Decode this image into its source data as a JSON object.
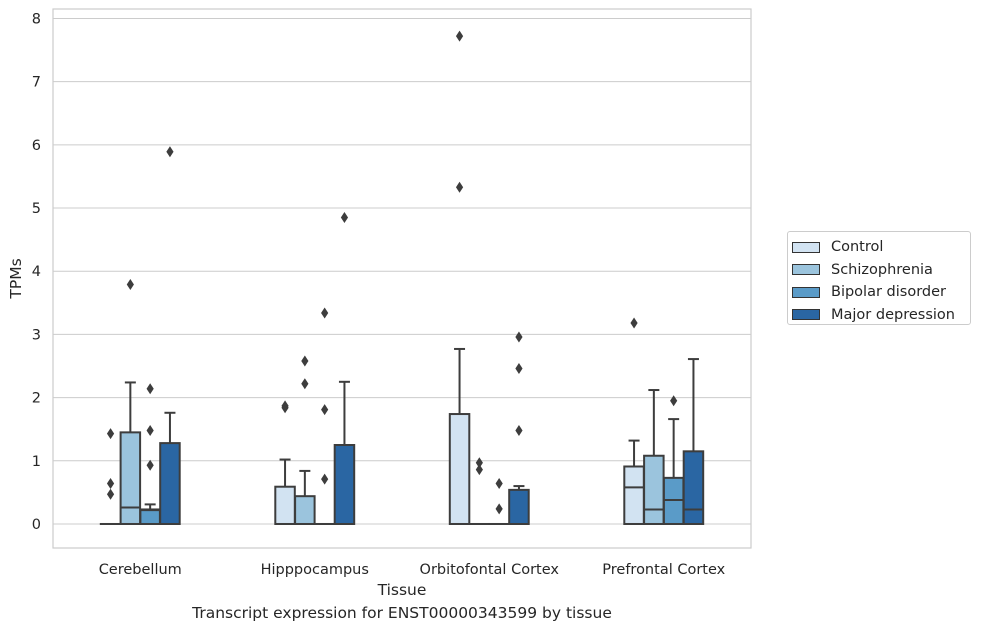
{
  "chart_data": {
    "type": "box",
    "title": "Transcript expression for ENST00000343599 by tissue",
    "xlabel": "Tissue",
    "ylabel": "TPMs",
    "ylim": [
      -0.38,
      8.15
    ],
    "yticks": [
      "0",
      "1",
      "2",
      "3",
      "4",
      "5",
      "6",
      "7",
      "8"
    ],
    "categories": [
      "Cerebellum",
      "Hipppocampus",
      "Orbitofontal Cortex",
      "Prefrontal Cortex"
    ],
    "grid": true,
    "legend_position": "right",
    "series": [
      {
        "name": "Control",
        "color": "#d2e3f2",
        "boxes": [
          {
            "q1": 0,
            "median": 0,
            "q3": 0,
            "whisker_low": 0,
            "whisker_high": 0,
            "outliers": [
              0.47,
              0.64,
              1.43
            ]
          },
          {
            "q1": 0,
            "median": 0,
            "q3": 0.59,
            "whisker_low": 0,
            "whisker_high": 1.02,
            "outliers": [
              1.84,
              1.87
            ]
          },
          {
            "q1": 0,
            "median": 0,
            "q3": 1.74,
            "whisker_low": 0,
            "whisker_high": 2.77,
            "outliers": [
              5.33,
              7.72
            ]
          },
          {
            "q1": 0,
            "median": 0.58,
            "q3": 0.91,
            "whisker_low": 0,
            "whisker_high": 1.32,
            "outliers": [
              3.18
            ]
          }
        ]
      },
      {
        "name": "Schizophrenia",
        "color": "#9bc4dd",
        "boxes": [
          {
            "q1": 0,
            "median": 0.26,
            "q3": 1.45,
            "whisker_low": 0,
            "whisker_high": 2.24,
            "outliers": [
              3.79
            ]
          },
          {
            "q1": 0,
            "median": 0,
            "q3": 0.44,
            "whisker_low": 0,
            "whisker_high": 0.84,
            "outliers": [
              2.22,
              2.58
            ]
          },
          {
            "q1": 0,
            "median": 0,
            "q3": 0,
            "whisker_low": 0,
            "whisker_high": 0,
            "outliers": [
              0.86,
              0.97
            ]
          },
          {
            "q1": 0,
            "median": 0.23,
            "q3": 1.08,
            "whisker_low": 0,
            "whisker_high": 2.12,
            "outliers": []
          }
        ]
      },
      {
        "name": "Bipolar disorder",
        "color": "#5a9bc8",
        "boxes": [
          {
            "q1": 0,
            "median": 0.22,
            "q3": 0.23,
            "whisker_low": 0,
            "whisker_high": 0.31,
            "outliers": [
              0.93,
              1.48,
              2.14
            ]
          },
          {
            "q1": 0,
            "median": 0,
            "q3": 0,
            "whisker_low": 0,
            "whisker_high": 0,
            "outliers": [
              0.71,
              1.81,
              3.34
            ]
          },
          {
            "q1": 0,
            "median": 0,
            "q3": 0,
            "whisker_low": 0,
            "whisker_high": 0,
            "outliers": [
              0.24,
              0.64
            ]
          },
          {
            "q1": 0,
            "median": 0.38,
            "q3": 0.73,
            "whisker_low": 0,
            "whisker_high": 1.66,
            "outliers": [
              1.95
            ]
          }
        ]
      },
      {
        "name": "Major depression",
        "color": "#2a66a3",
        "boxes": [
          {
            "q1": 0,
            "median": 0,
            "q3": 1.28,
            "whisker_low": 0,
            "whisker_high": 1.76,
            "outliers": [
              5.89
            ]
          },
          {
            "q1": 0,
            "median": 0,
            "q3": 1.25,
            "whisker_low": 0,
            "whisker_high": 2.25,
            "outliers": [
              4.85
            ]
          },
          {
            "q1": 0,
            "median": 0,
            "q3": 0.54,
            "whisker_low": 0,
            "whisker_high": 0.6,
            "outliers": [
              1.48,
              2.46,
              2.96
            ]
          },
          {
            "q1": 0,
            "median": 0.23,
            "q3": 1.15,
            "whisker_low": 0,
            "whisker_high": 2.61,
            "outliers": []
          }
        ]
      }
    ]
  }
}
